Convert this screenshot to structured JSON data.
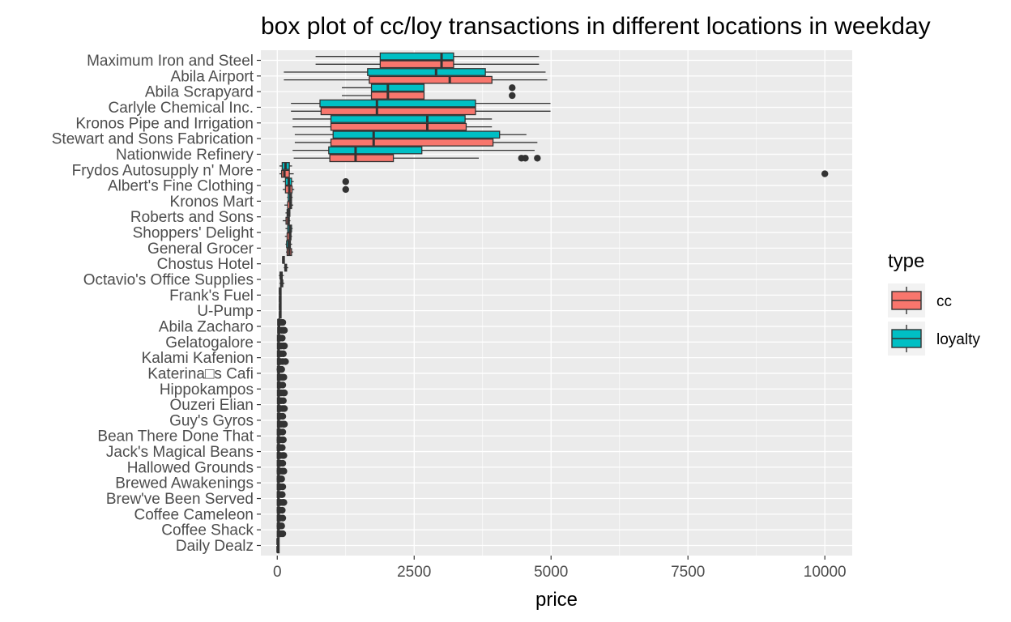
{
  "chart_data": {
    "type": "box",
    "title": "box plot of cc/loy transactions in different locations in weekday",
    "xlabel": "price",
    "ylabel": "",
    "xlim": [
      -300,
      10500
    ],
    "x_ticks": [
      0,
      2500,
      5000,
      7500,
      10000
    ],
    "x_tick_labels": [
      "0",
      "2500",
      "5000",
      "7500",
      "10000"
    ],
    "grid": true,
    "legend": {
      "title": "type",
      "position": "right",
      "entries": [
        "cc",
        "loyalty"
      ]
    },
    "colors": {
      "cc": "#F8766D",
      "loyalty": "#00BFC4",
      "panel": "#EBEBEB",
      "grid": "#FFFFFF",
      "outline": "#333333"
    },
    "categories": [
      "Maximum Iron and Steel",
      "Abila Airport",
      "Abila Scrapyard",
      "Carlyle Chemical Inc.",
      "Kronos Pipe and Irrigation",
      "Stewart and Sons Fabrication",
      "Nationwide Refinery",
      "Frydos Autosupply n' More",
      "Albert's Fine Clothing",
      "Kronos Mart",
      "Roberts and Sons",
      "Shoppers' Delight",
      "General Grocer",
      "Chostus Hotel",
      "Octavio's Office Supplies",
      "Frank's Fuel",
      "U-Pump",
      "Abila Zacharo",
      "Gelatogalore",
      "Kalami Kafenion",
      "Katerina□s Cafi",
      "Hippokampos",
      "Ouzeri Elian",
      "Guy's Gyros",
      "Bean There Done That",
      "Jack's Magical Beans",
      "Hallowed Grounds",
      "Brewed Awakenings",
      "Brew've Been Served",
      "Coffee Cameleon",
      "Coffee Shack",
      "Daily Dealz"
    ],
    "series": [
      {
        "name": "cc",
        "boxes": [
          {
            "category": "Maximum Iron and Steel",
            "min": 700,
            "q1": 1880,
            "median": 3000,
            "q3": 3220,
            "max": 4780,
            "outliers": []
          },
          {
            "category": "Abila Airport",
            "min": 120,
            "q1": 1680,
            "median": 3150,
            "q3": 3920,
            "max": 4930,
            "outliers": []
          },
          {
            "category": "Abila Scrapyard",
            "min": 1180,
            "q1": 1720,
            "median": 2020,
            "q3": 2680,
            "max": 2680,
            "outliers": [
              4290
            ]
          },
          {
            "category": "Carlyle Chemical Inc.",
            "min": 250,
            "q1": 800,
            "median": 1820,
            "q3": 3620,
            "max": 4990,
            "outliers": []
          },
          {
            "category": "Kronos Pipe and Irrigation",
            "min": 280,
            "q1": 980,
            "median": 2740,
            "q3": 3450,
            "max": 3920,
            "outliers": []
          },
          {
            "category": "Stewart and Sons Fabrication",
            "min": 320,
            "q1": 980,
            "median": 1760,
            "q3": 3940,
            "max": 4750,
            "outliers": []
          },
          {
            "category": "Nationwide Refinery",
            "min": 300,
            "q1": 960,
            "median": 1430,
            "q3": 2120,
            "max": 3680,
            "outliers": [
              4460,
              4530,
              4750
            ]
          },
          {
            "category": "Frydos Autosupply n' More",
            "min": 40,
            "q1": 80,
            "median": 130,
            "q3": 220,
            "max": 300,
            "outliers": [
              10000
            ]
          },
          {
            "category": "Albert's Fine Clothing",
            "min": 100,
            "q1": 150,
            "median": 220,
            "q3": 270,
            "max": 310,
            "outliers": [
              1250
            ]
          },
          {
            "category": "Kronos Mart",
            "min": 130,
            "q1": 190,
            "median": 240,
            "q3": 260,
            "max": 290,
            "outliers": []
          },
          {
            "category": "Roberts and Sons",
            "min": 100,
            "q1": 160,
            "median": 200,
            "q3": 220,
            "max": 240,
            "outliers": []
          },
          {
            "category": "Shoppers' Delight",
            "min": 140,
            "q1": 180,
            "median": 230,
            "q3": 250,
            "max": 270,
            "outliers": []
          },
          {
            "category": "General Grocer",
            "min": 160,
            "q1": 180,
            "median": 220,
            "q3": 260,
            "max": 290,
            "outliers": []
          },
          {
            "category": "Chostus Hotel",
            "min": 120,
            "q1": 140,
            "median": 150,
            "q3": 170,
            "max": 200,
            "outliers": []
          },
          {
            "category": "Octavio's Office Supplies",
            "min": 40,
            "q1": 60,
            "median": 75,
            "q3": 100,
            "max": 130,
            "outliers": []
          },
          {
            "category": "Frank's Fuel",
            "min": 30,
            "q1": 40,
            "median": 50,
            "q3": 60,
            "max": 70,
            "outliers": []
          },
          {
            "category": "U-Pump",
            "min": 30,
            "q1": 40,
            "median": 50,
            "q3": 60,
            "max": 70,
            "outliers": []
          },
          {
            "category": "Abila Zacharo",
            "min": 10,
            "q1": 15,
            "median": 20,
            "q3": 25,
            "max": 40,
            "outliers": [
              80,
              110,
              130
            ]
          },
          {
            "category": "Gelatogalore",
            "min": 5,
            "q1": 10,
            "median": 15,
            "q3": 20,
            "max": 30,
            "outliers": [
              70,
              110,
              130
            ]
          },
          {
            "category": "Kalami Kafenion",
            "min": 5,
            "q1": 10,
            "median": 15,
            "q3": 20,
            "max": 30,
            "outliers": [
              60,
              100,
              150
            ]
          },
          {
            "category": "Katerina□s Cafi",
            "min": 5,
            "q1": 10,
            "median": 15,
            "q3": 20,
            "max": 30,
            "outliers": [
              60,
              90,
              120
            ]
          },
          {
            "category": "Hippokampos",
            "min": 5,
            "q1": 10,
            "median": 15,
            "q3": 20,
            "max": 30,
            "outliers": [
              70,
              110,
              130
            ]
          },
          {
            "category": "Ouzeri Elian",
            "min": 5,
            "q1": 10,
            "median": 15,
            "q3": 20,
            "max": 30,
            "outliers": [
              60,
              100,
              130
            ]
          },
          {
            "category": "Guy's Gyros",
            "min": 5,
            "q1": 10,
            "median": 15,
            "q3": 20,
            "max": 30,
            "outliers": [
              70,
              110,
              130
            ]
          },
          {
            "category": "Bean There Done That",
            "min": 5,
            "q1": 8,
            "median": 12,
            "q3": 16,
            "max": 25,
            "outliers": [
              50,
              90,
              110
            ]
          },
          {
            "category": "Jack's Magical Beans",
            "min": 5,
            "q1": 8,
            "median": 12,
            "q3": 16,
            "max": 25,
            "outliers": [
              60,
              100,
              120
            ]
          },
          {
            "category": "Hallowed Grounds",
            "min": 5,
            "q1": 8,
            "median": 12,
            "q3": 16,
            "max": 25,
            "outliers": [
              50,
              90,
              120
            ]
          },
          {
            "category": "Brewed Awakenings",
            "min": 5,
            "q1": 8,
            "median": 12,
            "q3": 16,
            "max": 25,
            "outliers": [
              60,
              100
            ]
          },
          {
            "category": "Brew've Been Served",
            "min": 5,
            "q1": 8,
            "median": 12,
            "q3": 16,
            "max": 25,
            "outliers": [
              60,
              100,
              120
            ]
          },
          {
            "category": "Coffee Cameleon",
            "min": 5,
            "q1": 8,
            "median": 12,
            "q3": 16,
            "max": 25,
            "outliers": [
              60,
              100
            ]
          },
          {
            "category": "Coffee Shack",
            "min": 5,
            "q1": 8,
            "median": 12,
            "q3": 16,
            "max": 25,
            "outliers": [
              70,
              100
            ]
          },
          {
            "category": "Daily Dealz",
            "min": 2,
            "q1": 4,
            "median": 6,
            "q3": 8,
            "max": 12,
            "outliers": []
          }
        ]
      },
      {
        "name": "loyalty",
        "boxes": [
          {
            "category": "Maximum Iron and Steel",
            "min": 700,
            "q1": 1880,
            "median": 3000,
            "q3": 3220,
            "max": 4780,
            "outliers": []
          },
          {
            "category": "Abila Airport",
            "min": 120,
            "q1": 1650,
            "median": 2900,
            "q3": 3800,
            "max": 4900,
            "outliers": []
          },
          {
            "category": "Abila Scrapyard",
            "min": 1180,
            "q1": 1720,
            "median": 2020,
            "q3": 2680,
            "max": 2680,
            "outliers": [
              4290
            ]
          },
          {
            "category": "Carlyle Chemical Inc.",
            "min": 250,
            "q1": 780,
            "median": 1820,
            "q3": 3620,
            "max": 4990,
            "outliers": []
          },
          {
            "category": "Kronos Pipe and Irrigation",
            "min": 280,
            "q1": 980,
            "median": 2740,
            "q3": 3430,
            "max": 3920,
            "outliers": []
          },
          {
            "category": "Stewart and Sons Fabrication",
            "min": 320,
            "q1": 1020,
            "median": 1760,
            "q3": 4060,
            "max": 4550,
            "outliers": []
          },
          {
            "category": "Nationwide Refinery",
            "min": 280,
            "q1": 940,
            "median": 1430,
            "q3": 2640,
            "max": 4700,
            "outliers": []
          },
          {
            "category": "Frydos Autosupply n' More",
            "min": 40,
            "q1": 90,
            "median": 150,
            "q3": 220,
            "max": 270,
            "outliers": []
          },
          {
            "category": "Albert's Fine Clothing",
            "min": 100,
            "q1": 150,
            "median": 210,
            "q3": 260,
            "max": 300,
            "outliers": [
              1250
            ]
          },
          {
            "category": "Kronos Mart",
            "min": 180,
            "q1": 200,
            "median": 240,
            "q3": 260,
            "max": 280,
            "outliers": []
          },
          {
            "category": "Roberts and Sons",
            "min": 150,
            "q1": 180,
            "median": 210,
            "q3": 230,
            "max": 240,
            "outliers": []
          },
          {
            "category": "Shoppers' Delight",
            "min": 150,
            "q1": 190,
            "median": 230,
            "q3": 260,
            "max": 280,
            "outliers": []
          },
          {
            "category": "General Grocer",
            "min": 150,
            "q1": 170,
            "median": 210,
            "q3": 240,
            "max": 270,
            "outliers": []
          },
          {
            "category": "Chostus Hotel",
            "min": 90,
            "q1": 100,
            "median": 110,
            "q3": 120,
            "max": 130,
            "outliers": []
          },
          {
            "category": "Octavio's Office Supplies",
            "min": 30,
            "q1": 50,
            "median": 65,
            "q3": 90,
            "max": 120,
            "outliers": []
          },
          {
            "category": "Frank's Fuel",
            "min": 30,
            "q1": 40,
            "median": 50,
            "q3": 60,
            "max": 70,
            "outliers": []
          },
          {
            "category": "U-Pump",
            "min": 30,
            "q1": 40,
            "median": 50,
            "q3": 60,
            "max": 70,
            "outliers": []
          },
          {
            "category": "Abila Zacharo",
            "min": 10,
            "q1": 15,
            "median": 20,
            "q3": 25,
            "max": 40,
            "outliers": [
              70,
              100
            ]
          },
          {
            "category": "Gelatogalore",
            "min": 5,
            "q1": 10,
            "median": 15,
            "q3": 20,
            "max": 30,
            "outliers": [
              60,
              90
            ]
          },
          {
            "category": "Kalami Kafenion",
            "min": 5,
            "q1": 10,
            "median": 15,
            "q3": 20,
            "max": 30,
            "outliers": [
              70,
              110
            ]
          },
          {
            "category": "Katerina□s Cafi",
            "min": 5,
            "q1": 10,
            "median": 15,
            "q3": 20,
            "max": 30,
            "outliers": [
              50,
              80
            ]
          },
          {
            "category": "Hippokampos",
            "min": 5,
            "q1": 10,
            "median": 15,
            "q3": 20,
            "max": 30,
            "outliers": [
              60,
              100
            ]
          },
          {
            "category": "Ouzeri Elian",
            "min": 5,
            "q1": 10,
            "median": 15,
            "q3": 20,
            "max": 30,
            "outliers": [
              70,
              110
            ]
          },
          {
            "category": "Guy's Gyros",
            "min": 5,
            "q1": 10,
            "median": 15,
            "q3": 20,
            "max": 30,
            "outliers": [
              60,
              100
            ]
          },
          {
            "category": "Bean There Done That",
            "min": 5,
            "q1": 8,
            "median": 12,
            "q3": 16,
            "max": 25,
            "outliers": [
              60,
              100
            ]
          },
          {
            "category": "Jack's Magical Beans",
            "min": 5,
            "q1": 8,
            "median": 12,
            "q3": 16,
            "max": 25,
            "outliers": [
              50,
              90
            ]
          },
          {
            "category": "Hallowed Grounds",
            "min": 5,
            "q1": 8,
            "median": 12,
            "q3": 16,
            "max": 25,
            "outliers": [
              60,
              100
            ]
          },
          {
            "category": "Brewed Awakenings",
            "min": 5,
            "q1": 8,
            "median": 12,
            "q3": 16,
            "max": 25,
            "outliers": [
              50,
              80
            ]
          },
          {
            "category": "Brew've Been Served",
            "min": 5,
            "q1": 8,
            "median": 12,
            "q3": 16,
            "max": 25,
            "outliers": [
              70,
              90
            ]
          },
          {
            "category": "Coffee Cameleon",
            "min": 5,
            "q1": 8,
            "median": 12,
            "q3": 16,
            "max": 25,
            "outliers": [
              50,
              90
            ]
          },
          {
            "category": "Coffee Shack",
            "min": 5,
            "q1": 8,
            "median": 12,
            "q3": 16,
            "max": 25,
            "outliers": [
              50,
              80
            ]
          },
          {
            "category": "Daily Dealz",
            "min": 2,
            "q1": 4,
            "median": 6,
            "q3": 8,
            "max": 12,
            "outliers": []
          }
        ]
      }
    ]
  }
}
